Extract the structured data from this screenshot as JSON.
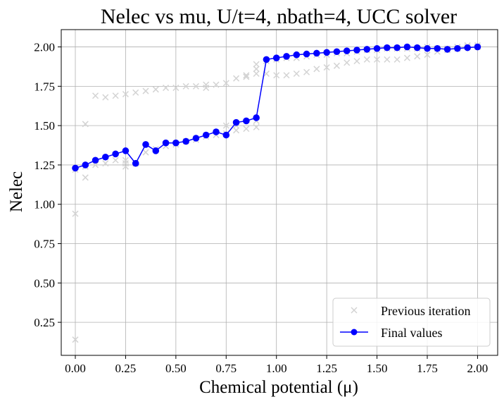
{
  "chart_data": {
    "type": "line",
    "title": "Nelec vs mu, U/t=4, nbath=4, UCC solver",
    "xlabel": "Chemical potential (μ)",
    "ylabel": "Nelec",
    "xlim": [
      -0.07,
      2.1
    ],
    "ylim": [
      0.04,
      2.11
    ],
    "xticks": [
      0.0,
      0.25,
      0.5,
      0.75,
      1.0,
      1.25,
      1.5,
      1.75,
      2.0
    ],
    "xtick_labels": [
      "0.00",
      "0.25",
      "0.50",
      "0.75",
      "1.00",
      "1.25",
      "1.50",
      "1.75",
      "2.00"
    ],
    "yticks": [
      0.25,
      0.5,
      0.75,
      1.0,
      1.25,
      1.5,
      1.75,
      2.0
    ],
    "ytick_labels": [
      "0.25",
      "0.50",
      "0.75",
      "1.00",
      "1.25",
      "1.50",
      "1.75",
      "2.00"
    ],
    "grid": true,
    "legend_position": "bottom-right",
    "colors": {
      "final": "#0000ff",
      "previous": "#d3d3d3",
      "grid": "#b0b0b0"
    },
    "series": [
      {
        "name": "Previous iteration",
        "marker": "x",
        "line": false,
        "points": [
          [
            0.0,
            0.14
          ],
          [
            0.0,
            0.94
          ],
          [
            0.0,
            1.22
          ],
          [
            0.05,
            1.17
          ],
          [
            0.05,
            1.51
          ],
          [
            0.05,
            1.24
          ],
          [
            0.1,
            1.69
          ],
          [
            0.1,
            1.25
          ],
          [
            0.15,
            1.68
          ],
          [
            0.15,
            1.26
          ],
          [
            0.2,
            1.69
          ],
          [
            0.2,
            1.28
          ],
          [
            0.25,
            1.24
          ],
          [
            0.25,
            1.26
          ],
          [
            0.25,
            1.28
          ],
          [
            0.25,
            1.7
          ],
          [
            0.3,
            1.71
          ],
          [
            0.3,
            1.26
          ],
          [
            0.35,
            1.72
          ],
          [
            0.35,
            1.33
          ],
          [
            0.4,
            1.73
          ],
          [
            0.4,
            1.35
          ],
          [
            0.45,
            1.74
          ],
          [
            0.45,
            1.37
          ],
          [
            0.5,
            1.74
          ],
          [
            0.5,
            1.38
          ],
          [
            0.55,
            1.75
          ],
          [
            0.55,
            1.4
          ],
          [
            0.6,
            1.75
          ],
          [
            0.6,
            1.41
          ],
          [
            0.65,
            1.74
          ],
          [
            0.65,
            1.76
          ],
          [
            0.65,
            1.43
          ],
          [
            0.7,
            1.76
          ],
          [
            0.7,
            1.44
          ],
          [
            0.75,
            1.77
          ],
          [
            0.75,
            1.45
          ],
          [
            0.75,
            1.5
          ],
          [
            0.8,
            1.8
          ],
          [
            0.8,
            1.47
          ],
          [
            0.8,
            1.5
          ],
          [
            0.85,
            1.81
          ],
          [
            0.85,
            1.82
          ],
          [
            0.85,
            1.48
          ],
          [
            0.9,
            1.83
          ],
          [
            0.9,
            1.86
          ],
          [
            0.9,
            1.89
          ],
          [
            0.9,
            1.49
          ],
          [
            0.9,
            1.53
          ],
          [
            0.95,
            1.83
          ],
          [
            0.95,
            1.91
          ],
          [
            1.0,
            1.82
          ],
          [
            1.0,
            1.92
          ],
          [
            1.05,
            1.82
          ],
          [
            1.05,
            1.93
          ],
          [
            1.1,
            1.83
          ],
          [
            1.1,
            1.93
          ],
          [
            1.15,
            1.84
          ],
          [
            1.15,
            1.94
          ],
          [
            1.2,
            1.86
          ],
          [
            1.2,
            1.95
          ],
          [
            1.25,
            1.87
          ],
          [
            1.25,
            1.95
          ],
          [
            1.3,
            1.88
          ],
          [
            1.3,
            1.96
          ],
          [
            1.35,
            1.9
          ],
          [
            1.35,
            1.96
          ],
          [
            1.4,
            1.91
          ],
          [
            1.4,
            1.97
          ],
          [
            1.45,
            1.92
          ],
          [
            1.45,
            1.98
          ],
          [
            1.5,
            1.92
          ],
          [
            1.5,
            1.98
          ],
          [
            1.55,
            1.92
          ],
          [
            1.55,
            1.99
          ],
          [
            1.6,
            1.92
          ],
          [
            1.6,
            1.99
          ],
          [
            1.65,
            1.93
          ],
          [
            1.65,
            1.99
          ],
          [
            1.7,
            1.94
          ],
          [
            1.7,
            1.99
          ],
          [
            1.75,
            1.95
          ],
          [
            1.75,
            2.0
          ],
          [
            1.8,
            1.97
          ],
          [
            1.8,
            1.99
          ],
          [
            1.85,
            1.98
          ],
          [
            1.85,
            1.99
          ],
          [
            1.9,
            1.99
          ],
          [
            1.9,
            2.0
          ],
          [
            1.95,
            2.0
          ],
          [
            1.95,
            2.01
          ],
          [
            2.0,
            2.0
          ],
          [
            2.0,
            2.01
          ]
        ]
      },
      {
        "name": "Final values",
        "marker": "o",
        "line": true,
        "x": [
          0.0,
          0.05,
          0.1,
          0.15,
          0.2,
          0.25,
          0.3,
          0.35,
          0.4,
          0.45,
          0.5,
          0.55,
          0.6,
          0.65,
          0.7,
          0.75,
          0.8,
          0.85,
          0.9,
          0.95,
          1.0,
          1.05,
          1.1,
          1.15,
          1.2,
          1.25,
          1.3,
          1.35,
          1.4,
          1.45,
          1.5,
          1.55,
          1.6,
          1.65,
          1.7,
          1.75,
          1.8,
          1.85,
          1.9,
          1.95,
          2.0
        ],
        "y": [
          1.23,
          1.25,
          1.28,
          1.3,
          1.32,
          1.34,
          1.26,
          1.38,
          1.34,
          1.39,
          1.39,
          1.4,
          1.42,
          1.44,
          1.46,
          1.44,
          1.52,
          1.53,
          1.55,
          1.92,
          1.93,
          1.94,
          1.95,
          1.955,
          1.96,
          1.965,
          1.97,
          1.975,
          1.98,
          1.985,
          1.99,
          1.995,
          1.995,
          2.0,
          1.995,
          1.99,
          1.99,
          1.985,
          1.99,
          1.995,
          2.0
        ]
      }
    ]
  }
}
